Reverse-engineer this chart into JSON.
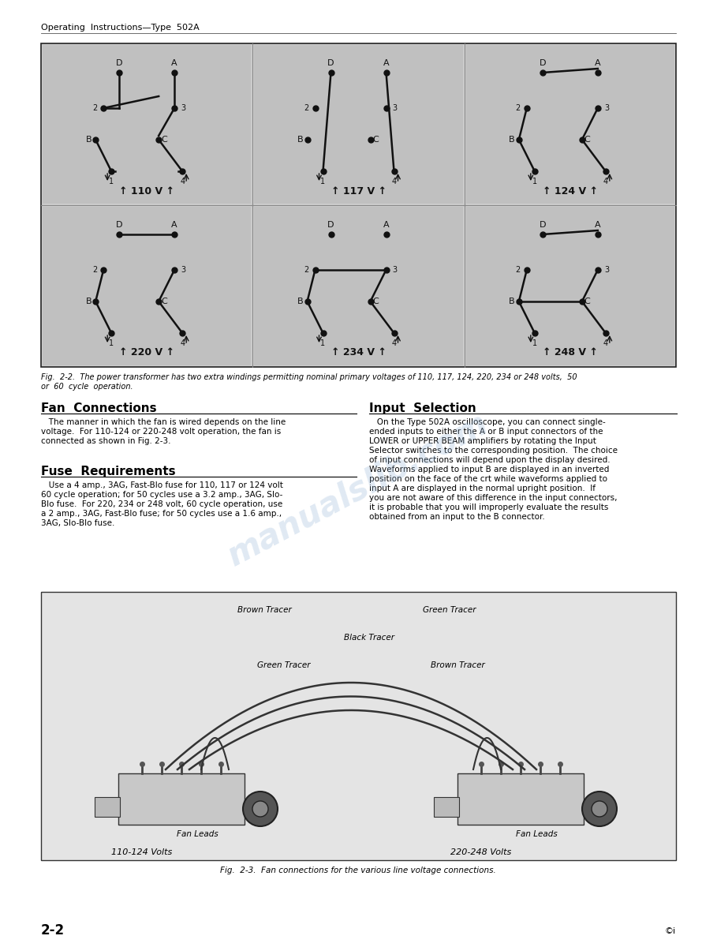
{
  "page_header": "Operating  Instructions—Type  502A",
  "fig2_2_caption_line1": "Fig.  2-2.  The power transformer has two extra windings permitting nominal primary voltages of 110, 117, 124, 220, 234 or 248 volts,  50",
  "fig2_2_caption_line2": "or  60  cycle  operation.",
  "section1_title": "Fan  Connections",
  "section1_body_lines": [
    "   The manner in which the fan is wired depends on the line",
    "voltage.  For 110-124 or 220-248 volt operation, the fan is",
    "connected as shown in Fig. 2-3."
  ],
  "section2_title": "Fuse  Requirements",
  "section2_body_lines": [
    "   Use a 4 amp., 3AG, Fast-Blo fuse for 110, 117 or 124 volt",
    "60 cycle operation; for 50 cycles use a 3.2 amp., 3AG, Slo-",
    "Blo fuse.  For 220, 234 or 248 volt, 60 cycle operation, use",
    "a 2 amp., 3AG, Fast-Blo fuse; for 50 cycles use a 1.6 amp.,",
    "3AG, Slo-Blo fuse."
  ],
  "section3_title": "Input  Selection",
  "section3_body_lines": [
    "   On the Type 502A oscilloscope, you can connect single-",
    "ended inputs to either the A or B input connectors of the",
    "LOWER or UPPER BEAM amplifiers by rotating the Input",
    "Selector switches to the corresponding position.  The choice",
    "of input connections will depend upon the display desired.",
    "Waveforms applied to input B are displayed in an inverted",
    "position on the face of the crt while waveforms applied to",
    "input A are displayed in the normal upright position.  If",
    "you are not aware of this difference in the input connectors,",
    "it is probable that you will improperly evaluate the results",
    "obtained from an input to the B connector."
  ],
  "fig2_3_caption": "Fig.  2-3.  Fan connections for the various line voltage connections.",
  "page_number": "2-2",
  "voltages_row1": [
    "110 V",
    "117 V",
    "124 V"
  ],
  "voltages_row2": [
    "220 V",
    "234 V",
    "248 V"
  ],
  "bg_color": "#ffffff",
  "text_color": "#000000",
  "panel_bg": "#b0b0b0",
  "outer_box_bg": "#d8d8d8",
  "watermark_color": "#99b8d8",
  "fan_box_bg": "#e8e8e8",
  "tracer_labels": [
    "Brown Tracer",
    "Green Tracer",
    "Black Tracer",
    "Green Tracer",
    "Brown Tracer"
  ]
}
